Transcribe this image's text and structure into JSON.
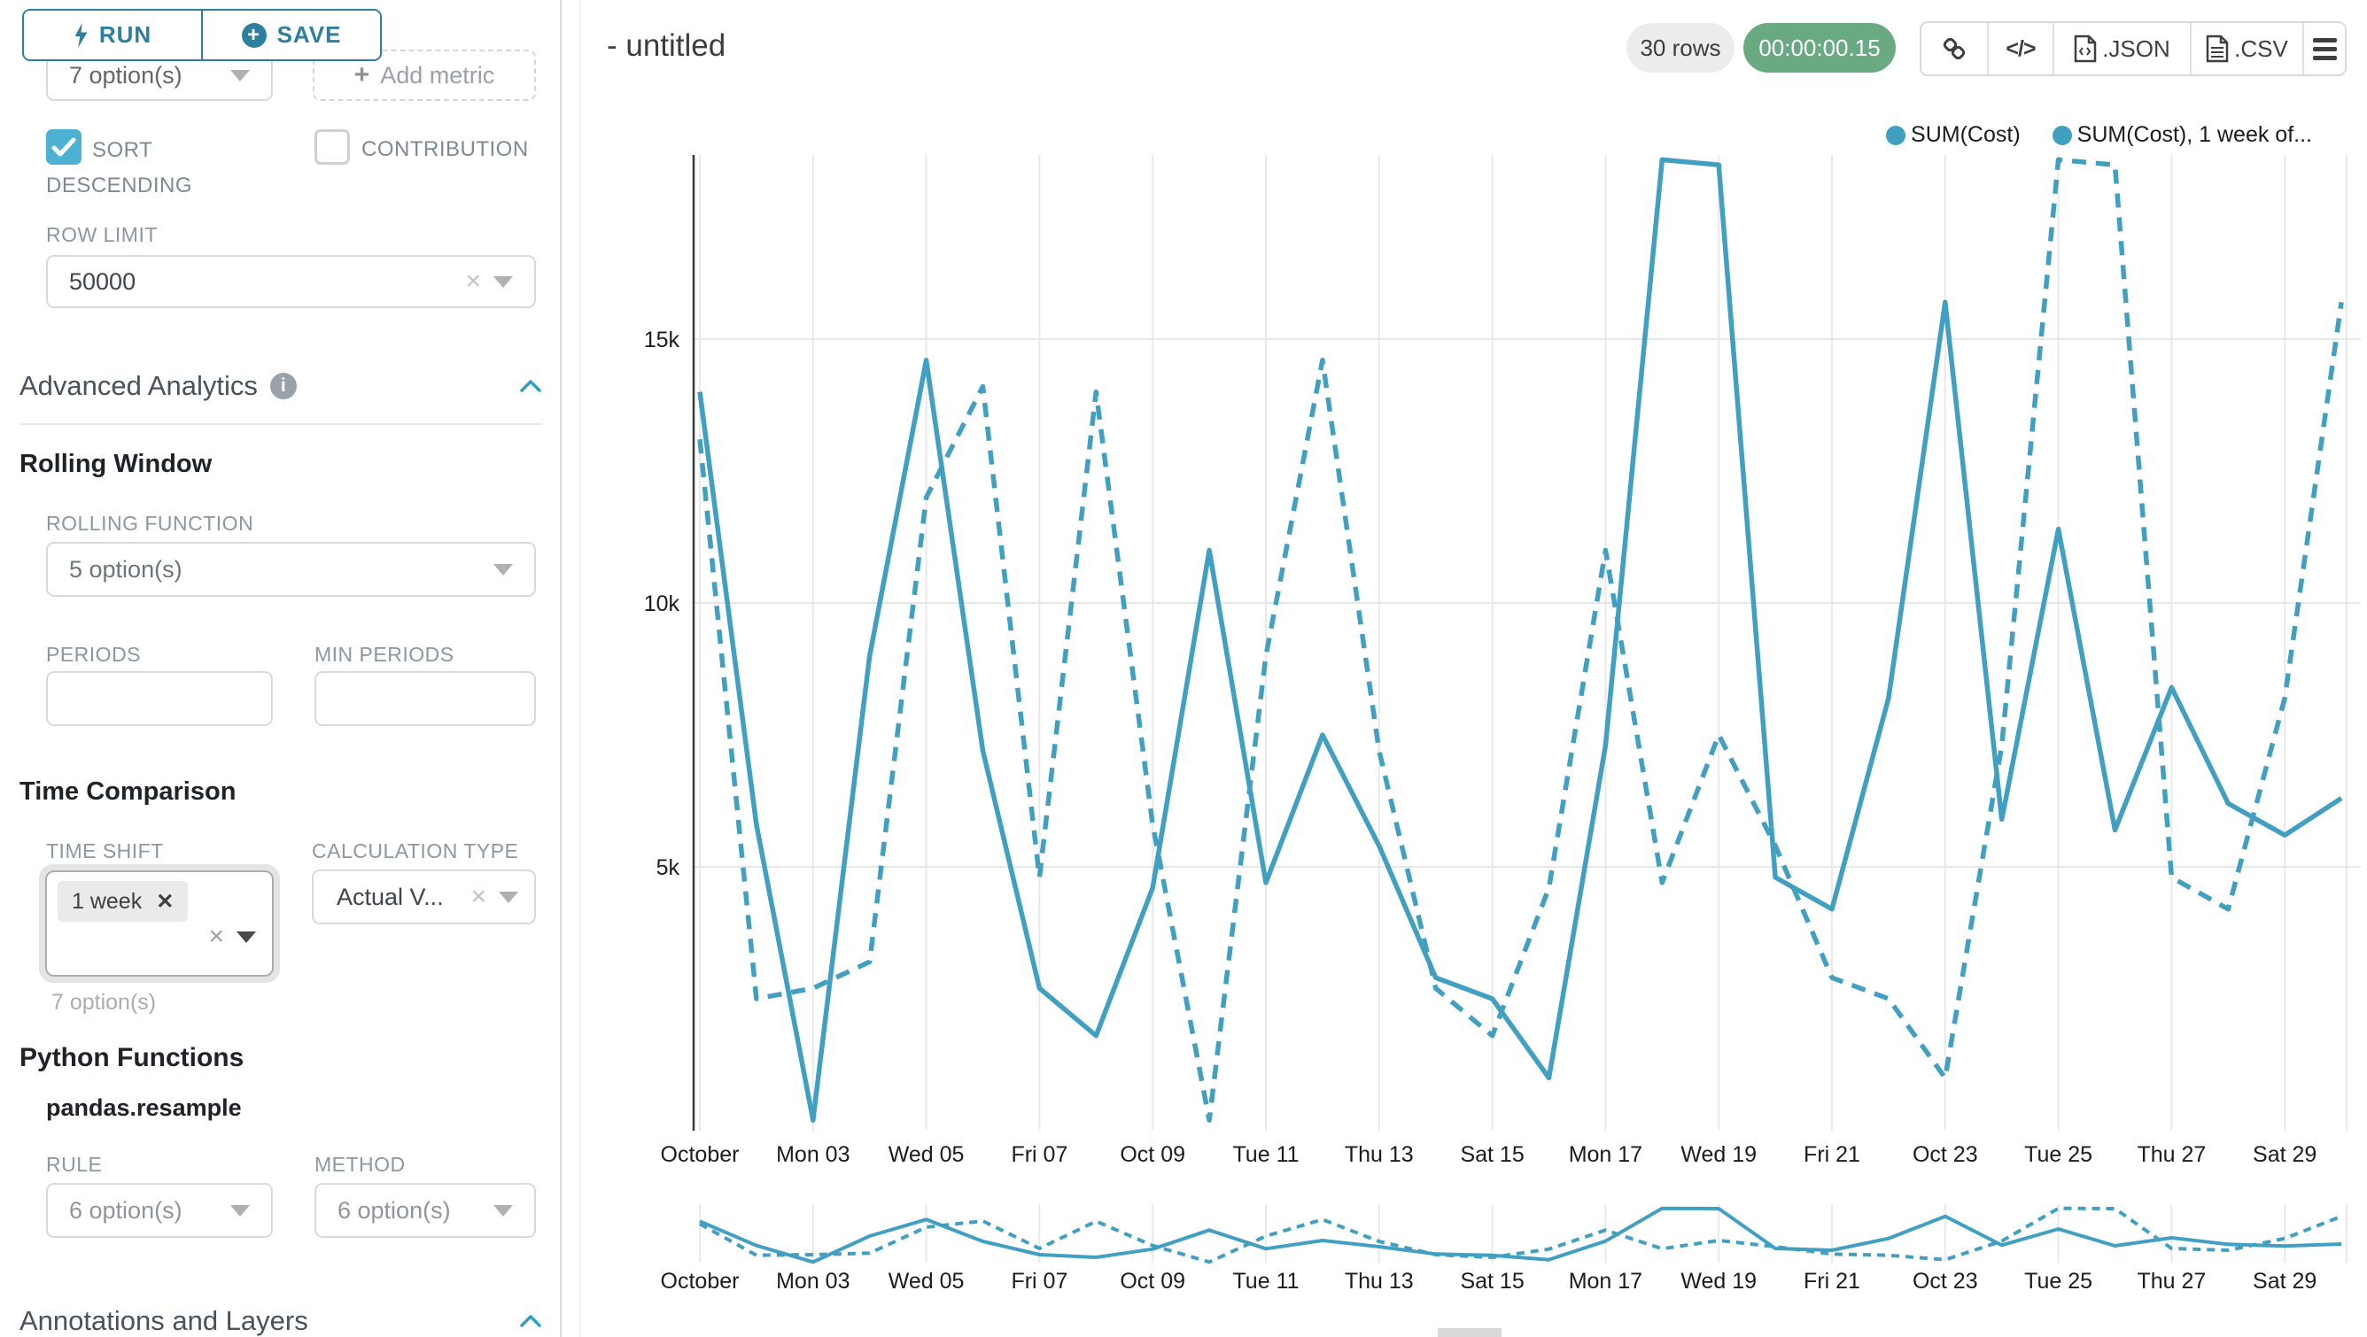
{
  "app": {
    "accent": "#2e7f9f",
    "series_color": "#41a0c2",
    "timer_green": "#6aaa83"
  },
  "sidebar": {
    "run_label": "RUN",
    "save_label": "SAVE",
    "groupby_value": "7 option(s)",
    "add_metric_label": "Add metric",
    "sort_descending_label": "SORT DESCENDING",
    "sort_descending_checked": true,
    "contribution_label": "CONTRIBUTION",
    "contribution_checked": false,
    "row_limit_label": "ROW LIMIT",
    "row_limit_value": "50000",
    "advanced_analytics_title": "Advanced Analytics",
    "rolling_window_title": "Rolling Window",
    "rolling_function_label": "ROLLING FUNCTION",
    "rolling_function_value": "5 option(s)",
    "periods_label": "PERIODS",
    "min_periods_label": "MIN PERIODS",
    "time_comparison_title": "Time Comparison",
    "time_shift_label": "TIME SHIFT",
    "time_shift_tag": "1 week",
    "time_shift_hint": "7 option(s)",
    "calculation_type_label": "CALCULATION TYPE",
    "calculation_type_value": "Actual V...",
    "python_functions_title": "Python Functions",
    "python_functions_subtitle": "pandas.resample",
    "rule_label": "RULE",
    "rule_value": "6 option(s)",
    "method_label": "METHOD",
    "method_value": "6 option(s)",
    "annotations_title": "Annotations and Layers"
  },
  "header": {
    "title": "- untitled",
    "rows_badge": "30 rows",
    "timer_badge": "00:00:00.15",
    "json_label": ".JSON",
    "csv_label": ".CSV"
  },
  "chart_data": {
    "type": "line",
    "x": [
      "Oct 01",
      "Oct 02",
      "Oct 03",
      "Oct 04",
      "Oct 05",
      "Oct 06",
      "Oct 07",
      "Oct 08",
      "Oct 09",
      "Oct 10",
      "Oct 11",
      "Oct 12",
      "Oct 13",
      "Oct 14",
      "Oct 15",
      "Oct 16",
      "Oct 17",
      "Oct 18",
      "Oct 19",
      "Oct 20",
      "Oct 21",
      "Oct 22",
      "Oct 23",
      "Oct 24",
      "Oct 25",
      "Oct 26",
      "Oct 27",
      "Oct 28",
      "Oct 29",
      "Oct 30"
    ],
    "x_ticks": [
      {
        "i": 0,
        "label": "October"
      },
      {
        "i": 2,
        "label": "Mon 03"
      },
      {
        "i": 4,
        "label": "Wed 05"
      },
      {
        "i": 6,
        "label": "Fri 07"
      },
      {
        "i": 8,
        "label": "Oct 09"
      },
      {
        "i": 10,
        "label": "Tue 11"
      },
      {
        "i": 12,
        "label": "Thu 13"
      },
      {
        "i": 14,
        "label": "Sat 15"
      },
      {
        "i": 16,
        "label": "Mon 17"
      },
      {
        "i": 18,
        "label": "Wed 19"
      },
      {
        "i": 20,
        "label": "Fri 21"
      },
      {
        "i": 22,
        "label": "Oct 23"
      },
      {
        "i": 24,
        "label": "Tue 25"
      },
      {
        "i": 26,
        "label": "Thu 27"
      },
      {
        "i": 28,
        "label": "Sat 29"
      }
    ],
    "y_ticks": [
      {
        "value": 5000,
        "label": "5k"
      },
      {
        "value": 10000,
        "label": "10k"
      },
      {
        "value": 15000,
        "label": "15k"
      }
    ],
    "ylim": [
      0,
      18600
    ],
    "grid": true,
    "legend_position": "top-right",
    "series": [
      {
        "name": "SUM(Cost)",
        "legend_label": "SUM(Cost)",
        "line_style": "solid",
        "color": "#41a0c2",
        "values": [
          14000,
          5800,
          200,
          9000,
          14600,
          7200,
          2700,
          1800,
          4600,
          11000,
          4700,
          7500,
          5400,
          2900,
          2500,
          1000,
          7300,
          18400,
          18300,
          4800,
          4200,
          8200,
          15700,
          5900,
          11400,
          5700,
          8400,
          6200,
          5600,
          6300
        ]
      },
      {
        "name": "SUM(Cost), 1 week offset",
        "legend_label": "SUM(Cost), 1 week of...",
        "line_style": "dashed",
        "color": "#41a0c2",
        "values": [
          13100,
          2500,
          2700,
          3200,
          12000,
          14100,
          4800,
          14000,
          5800,
          200,
          9000,
          14600,
          7200,
          2700,
          1800,
          4600,
          11000,
          4700,
          7500,
          5400,
          2900,
          2500,
          1000,
          7300,
          18400,
          18300,
          4800,
          4200,
          8200,
          15700
        ]
      }
    ]
  }
}
